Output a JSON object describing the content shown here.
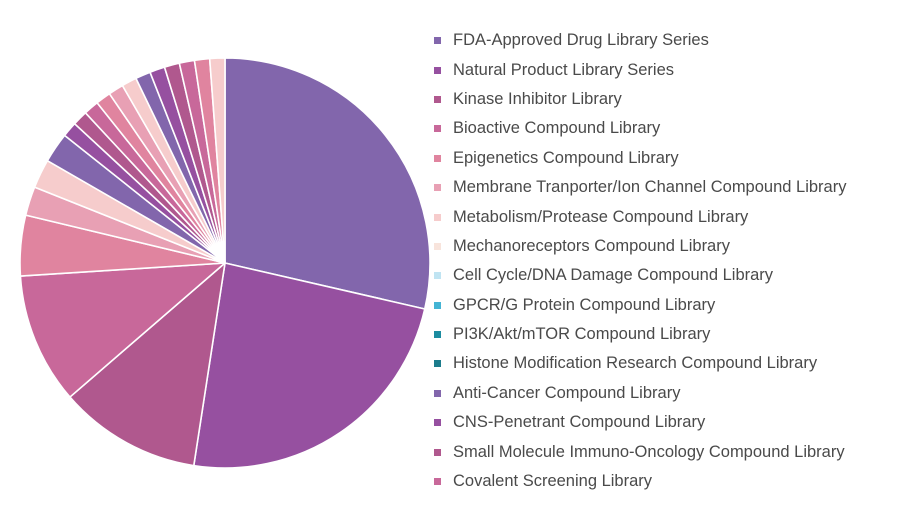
{
  "chart_data": {
    "type": "pie",
    "legend_position": "right",
    "slices": [
      {
        "label": "FDA-Approved Drug Library Series",
        "value": 28.8,
        "color": "#8266ac"
      },
      {
        "label": "Natural Product Library Series",
        "value": 24.0,
        "color": "#9650a0"
      },
      {
        "label": "Kinase Inhibitor Library",
        "value": 11.3,
        "color": "#b0588e"
      },
      {
        "label": "Bioactive Compound Library",
        "value": 10.4,
        "color": "#c8689a"
      },
      {
        "label": "Epigenetics Compound Library",
        "value": 4.8,
        "color": "#e0849f"
      },
      {
        "label": "Membrane Tranporter/Ion Channel Compound Library",
        "value": 2.3,
        "color": "#e8a0b4"
      },
      {
        "label": "Metabolism/Protease Compound Library",
        "value": 2.3,
        "color": "#f6cccc"
      },
      {
        "label": "Anti-Cancer Compound Library",
        "value": 2.4,
        "color": "#8266ac"
      },
      {
        "label": "CNS-Penetrant Compound Library",
        "value": 1.2,
        "color": "#9650a0"
      },
      {
        "label": "Small Molecule Immuno-Oncology Compound Library",
        "value": 1.2,
        "color": "#b0588e"
      },
      {
        "label": "Covalent Screening Library",
        "value": 1.2,
        "color": "#c8689a"
      },
      {
        "label": "",
        "value": 1.2,
        "color": "#e0849f"
      },
      {
        "label": "",
        "value": 1.2,
        "color": "#e8a0b4"
      },
      {
        "label": "",
        "value": 1.2,
        "color": "#f6cccc"
      },
      {
        "label": "",
        "value": 1.2,
        "color": "#8266ac"
      },
      {
        "label": "",
        "value": 1.2,
        "color": "#9650a0"
      },
      {
        "label": "",
        "value": 1.2,
        "color": "#b0588e"
      },
      {
        "label": "",
        "value": 1.2,
        "color": "#c8689a"
      },
      {
        "label": "",
        "value": 1.2,
        "color": "#e0849f"
      },
      {
        "label": "",
        "value": 1.2,
        "color": "#f6cccc"
      }
    ]
  },
  "legend": [
    {
      "label": "FDA-Approved Drug Library Series",
      "color": "#8266ac"
    },
    {
      "label": "Natural Product Library Series",
      "color": "#9650a0"
    },
    {
      "label": "Kinase Inhibitor Library",
      "color": "#b0588e"
    },
    {
      "label": "Bioactive Compound Library",
      "color": "#c8689a"
    },
    {
      "label": "Epigenetics Compound Library",
      "color": "#e0849f"
    },
    {
      "label": "Membrane Tranporter/Ion Channel Compound Library",
      "color": "#e8a0b4"
    },
    {
      "label": "Metabolism/Protease Compound Library",
      "color": "#f6cccc"
    },
    {
      "label": "Mechanoreceptors Compound Library",
      "color": "#f8e4dc"
    },
    {
      "label": "Cell Cycle/DNA Damage Compound Library",
      "color": "#c0e4f2"
    },
    {
      "label": "GPCR/G Protein Compound Library",
      "color": "#44b4d4"
    },
    {
      "label": "PI3K/Akt/mTOR Compound Library",
      "color": "#1c8ca0"
    },
    {
      "label": "Histone Modification Research  Compound Library",
      "color": "#1c7c8c"
    },
    {
      "label": "Anti-Cancer Compound Library",
      "color": "#8266ac"
    },
    {
      "label": "CNS-Penetrant Compound Library",
      "color": "#9650a0"
    },
    {
      "label": "Small Molecule Immuno-Oncology Compound Library",
      "color": "#b0588e"
    },
    {
      "label": "Covalent Screening Library",
      "color": "#c8689a"
    }
  ]
}
